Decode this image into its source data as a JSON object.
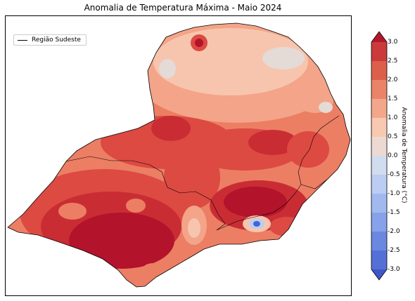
{
  "map": {
    "title": "Anomalia de Temperatura Máxima - Maio 2024",
    "legend_label": "Região Sudeste",
    "colorbar": {
      "label": "Anomalia de Temperatura (°C)",
      "ticks": [
        "3.0",
        "2.5",
        "2.0",
        "1.5",
        "1.0",
        "0.5",
        "0.0",
        "-0.5",
        "-1.0",
        "-1.5",
        "-2.0",
        "-2.5",
        "-3.0"
      ],
      "colors": [
        "#b2182b",
        "#cb3a3a",
        "#dc5f4c",
        "#ea8468",
        "#f3a78a",
        "#f8c8b1",
        "#ecdad2",
        "#d2dcef",
        "#bccdf3",
        "#a2b9f0",
        "#87a2ea",
        "#6b88e0",
        "#5470d6",
        "#3f56c8"
      ]
    },
    "colors": {
      "anomaly_3": "#b3132b",
      "anomaly_2_5": "#c92d33",
      "anomaly_2": "#dc4a42",
      "anomaly_1_5": "#ec7e64",
      "anomaly_1": "#f4a488",
      "anomaly_0_5": "#f7c5ae",
      "anomaly_0": "#e4dad6",
      "anomaly_neg": "#3c67d8",
      "border": "#000000"
    }
  }
}
